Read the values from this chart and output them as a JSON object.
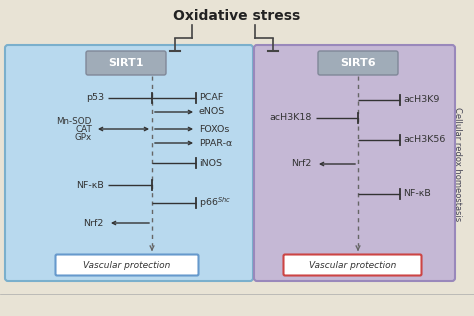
{
  "title": "Oxidative stress",
  "title_fontsize": 10,
  "bg_color": "#e8e3d5",
  "sirt1_box_color": "#b8d9ee",
  "sirt6_box_color": "#c5b8d5",
  "sirt1_label": "SIRT1",
  "sirt6_label": "SIRT6",
  "sirt_label_box_color": "#9aa8b0",
  "vascular_label": "Vascular protection",
  "vascular_box_edge1": "#6699cc",
  "vascular_box_edge2": "#cc4444",
  "side_label": "Cellular redox homeostasis",
  "dashed_line_color": "#666666",
  "arrow_color": "#333333",
  "text_color": "#222222",
  "text_color2": "#444455"
}
